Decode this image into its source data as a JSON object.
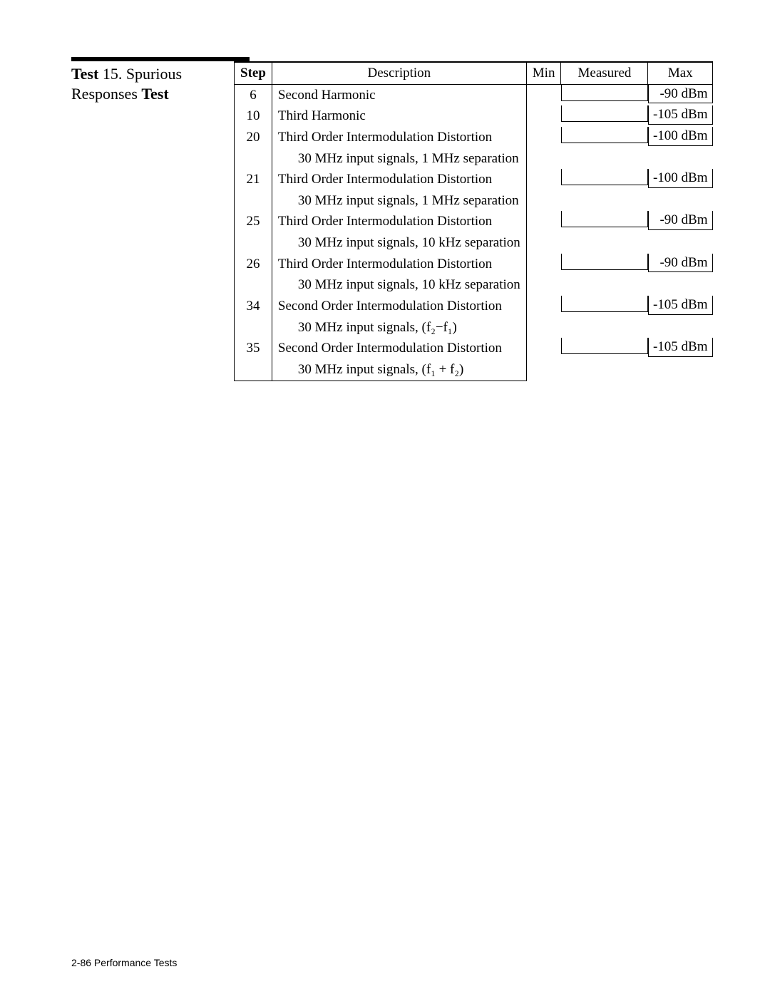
{
  "title": {
    "prefix_bold": "Test",
    "prefix_rest": " 15. Spurious",
    "line2_plain": "Responses ",
    "line2_bold": "Test"
  },
  "headers": {
    "step": "Step",
    "description": "Description",
    "min": "Min",
    "measured": "Measured",
    "max": "Max"
  },
  "rows": [
    {
      "step": "6",
      "desc": "Second Harmonic",
      "sub": "",
      "max": "-90 dBm"
    },
    {
      "step": "10",
      "desc": "Third Harmonic",
      "sub": "",
      "max": "-105 dBm"
    },
    {
      "step": "20",
      "desc": "Third Order Intermodulation Distortion",
      "sub": "30 MHz input signals, 1 MHz separation",
      "max": "-100 dBm"
    },
    {
      "step": "21",
      "desc": "Third Order Intermodulation Distortion",
      "sub": "30 MHz input signals, 1 MHz separation",
      "max": "-100 dBm"
    },
    {
      "step": "25",
      "desc": "Third Order Intermodulation Distortion",
      "sub": "30 MHz input signals, 10 kHz separation",
      "max": "-90 dBm"
    },
    {
      "step": "26",
      "desc": "Third Order Intermodulation Distortion",
      "sub": "30 MHz input signals, 10 kHz separation",
      "max": "-90 dBm"
    },
    {
      "step": "34",
      "desc": "Second Order Intermodulation Distortion",
      "sub": "30 MHz input signals, (f₂−f₁)",
      "max": "-105 dBm"
    },
    {
      "step": "35",
      "desc": "Second Order Intermodulation Distortion",
      "sub": "30 MHz input signals, (f₁ + f₂)",
      "max": "-105 dBm"
    }
  ],
  "footer": "2-86 Performance Tests"
}
